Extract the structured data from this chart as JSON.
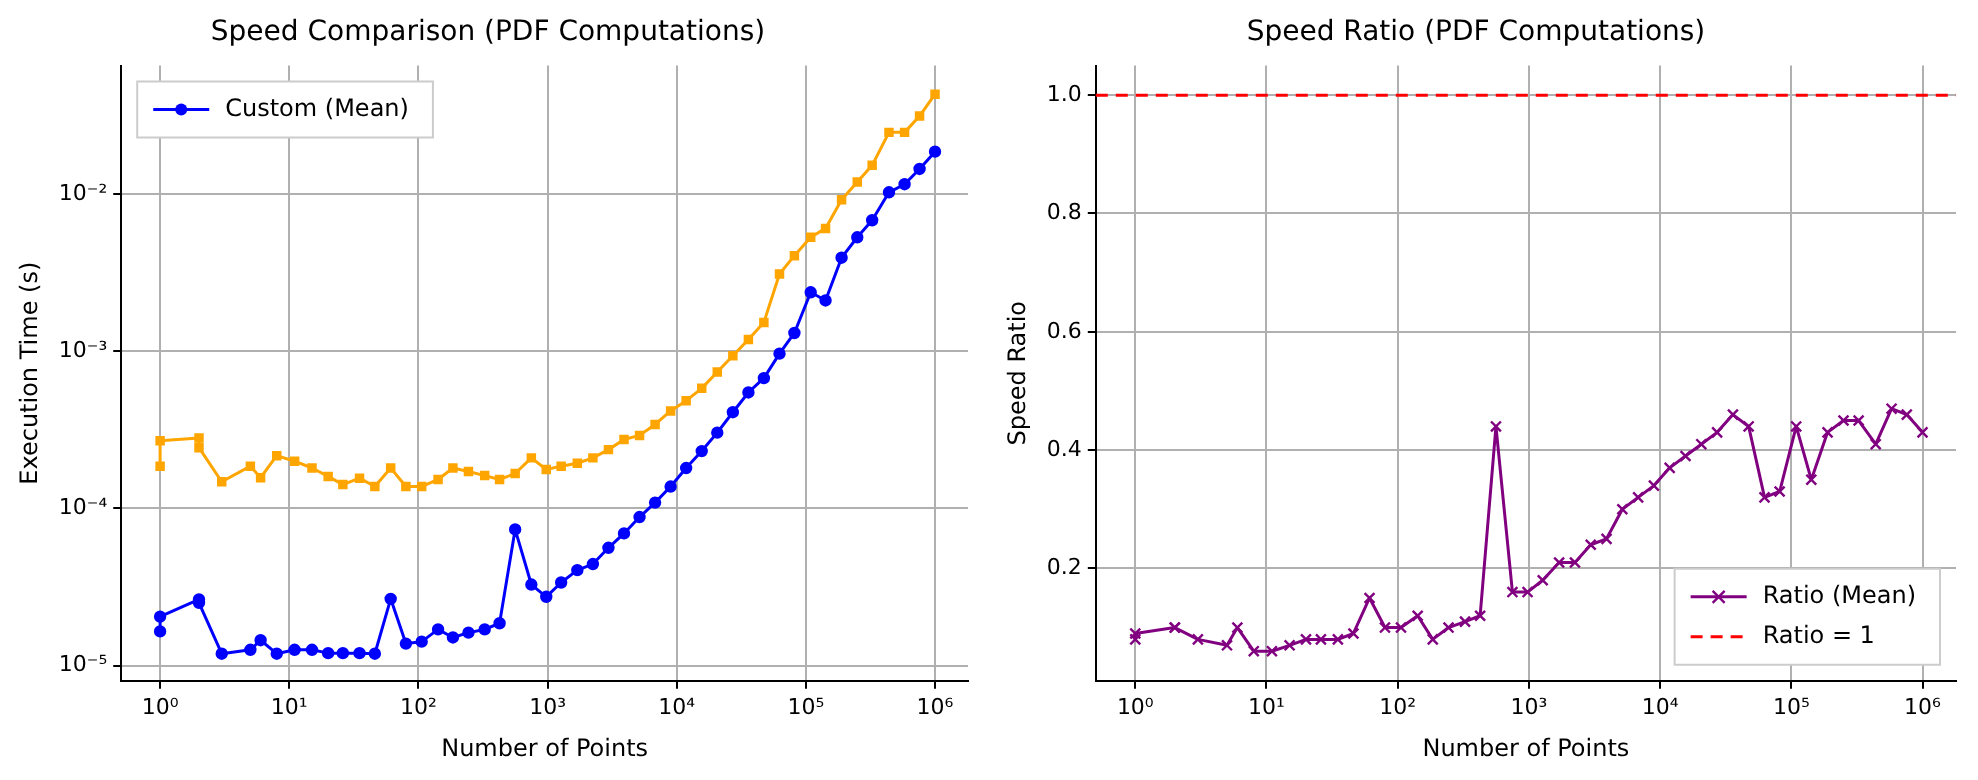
{
  "chart_data": [
    {
      "type": "line",
      "title": "Speed Comparison (PDF Computations)",
      "xlabel": "Number of Points",
      "ylabel": "Execution Time (s)",
      "log": "xy",
      "grid": true,
      "legend": "top left",
      "x": [
        1,
        1,
        2,
        2,
        3,
        5,
        6,
        8,
        11,
        15,
        20,
        26,
        35,
        46,
        61,
        80,
        106,
        142,
        185,
        244,
        326,
        425,
        561,
        749,
        977,
        1274,
        1700,
        2244,
        2960,
        3907,
        5155,
        6800,
        8970,
        11830,
        15620,
        20600,
        27200,
        35900,
        47300,
        62500,
        81500,
        109000,
        142000,
        189000,
        250000,
        326000,
        440000,
        581000,
        759000,
        1000000
      ],
      "xlim": [
        0.5,
        1800000
      ],
      "xticks": [
        {
          "value": 1,
          "label": "10⁰"
        },
        {
          "value": 10,
          "label": "10¹"
        },
        {
          "value": 100,
          "label": "10²"
        },
        {
          "value": 1000,
          "label": "10³"
        },
        {
          "value": 10000,
          "label": "10⁴"
        },
        {
          "value": 100000,
          "label": "10⁵"
        },
        {
          "value": 1000000,
          "label": "10⁶"
        }
      ],
      "ylim": [
        8e-06,
        0.066
      ],
      "yticks": [
        {
          "value": 1e-05,
          "label": "10⁻⁵"
        },
        {
          "value": 0.0001,
          "label": "10⁻⁴"
        },
        {
          "value": 0.001,
          "label": "10⁻³"
        },
        {
          "value": 0.01,
          "label": "10⁻²"
        }
      ],
      "series": [
        {
          "name": "Custom (Mean)",
          "color": "#0000ff",
          "marker": "circle",
          "values": [
            1.65e-05,
            2.05e-05,
            2.64e-05,
            2.51e-05,
            1.19e-05,
            1.26e-05,
            1.45e-05,
            1.19e-05,
            1.26e-05,
            1.26e-05,
            1.2e-05,
            1.2e-05,
            1.2e-05,
            1.19e-05,
            2.66e-05,
            1.38e-05,
            1.42e-05,
            1.7e-05,
            1.51e-05,
            1.62e-05,
            1.7e-05,
            1.86e-05,
            7.36e-05,
            3.28e-05,
            2.74e-05,
            3.38e-05,
            4.05e-05,
            4.43e-05,
            5.62e-05,
            6.94e-05,
            8.82e-05,
            0.000109,
            0.000138,
            0.000181,
            0.000232,
            0.000304,
            0.00041,
            0.000548,
            0.000676,
            0.000968,
            0.00131,
            0.00238,
            0.00211,
            0.00395,
            0.00533,
            0.00684,
            0.0103,
            0.0116,
            0.0145,
            0.0187
          ]
        },
        {
          "color": "#ffa500",
          "marker": "square",
          "values": [
            0.000186,
            0.00027,
            0.000281,
            0.000244,
            0.000148,
            0.000186,
            0.000157,
            0.000217,
            0.0002,
            0.000181,
            0.00016,
            0.000142,
            0.000156,
            0.000138,
            0.000181,
            0.000138,
            0.000138,
            0.000153,
            0.000181,
            0.000172,
            0.000162,
            0.000153,
            0.000167,
            0.00021,
            0.000177,
            0.000186,
            0.000194,
            0.00021,
            0.000237,
            0.000275,
            0.000292,
            0.000343,
            0.000418,
            0.000486,
            0.000582,
            0.000739,
            0.000939,
            0.00119,
            0.00153,
            0.00311,
            0.00407,
            0.00533,
            0.00607,
            0.00923,
            0.012,
            0.0153,
            0.0248,
            0.0248,
            0.0315,
            0.0434
          ]
        }
      ]
    },
    {
      "type": "line",
      "title": "Speed Ratio (PDF Computations)",
      "xlabel": "Number of Points",
      "ylabel": "Speed Ratio",
      "log": "x",
      "grid": true,
      "legend": "bottom right",
      "x": [
        1,
        1,
        2,
        2,
        3,
        5,
        6,
        8,
        11,
        15,
        20,
        26,
        35,
        46,
        61,
        80,
        106,
        142,
        185,
        244,
        326,
        425,
        561,
        749,
        977,
        1274,
        1700,
        2244,
        2960,
        3907,
        5155,
        6800,
        8970,
        11830,
        15620,
        20600,
        27200,
        35900,
        47300,
        62500,
        81500,
        109000,
        142000,
        189000,
        250000,
        326000,
        440000,
        581000,
        759000,
        1000000
      ],
      "xlim": [
        0.5,
        1800000
      ],
      "xticks": [
        {
          "value": 1,
          "label": "10⁰"
        },
        {
          "value": 10,
          "label": "10¹"
        },
        {
          "value": 100,
          "label": "10²"
        },
        {
          "value": 1000,
          "label": "10³"
        },
        {
          "value": 10000,
          "label": "10⁴"
        },
        {
          "value": 100000,
          "label": "10⁵"
        },
        {
          "value": 1000000,
          "label": "10⁶"
        }
      ],
      "ylim": [
        0.01,
        1.05
      ],
      "yticks": [
        {
          "value": 0.2,
          "label": "0.2"
        },
        {
          "value": 0.4,
          "label": "0.4"
        },
        {
          "value": 0.6,
          "label": "0.6"
        },
        {
          "value": 0.8,
          "label": "0.8"
        },
        {
          "value": 1,
          "label": "1.0"
        }
      ],
      "series": [
        {
          "name": "Ratio (Mean)",
          "color": "#800080",
          "marker": "cross",
          "values": [
            0.08,
            0.09,
            0.1,
            0.1,
            0.08,
            0.07,
            0.1,
            0.06,
            0.06,
            0.07,
            0.08,
            0.08,
            0.08,
            0.09,
            0.15,
            0.1,
            0.1,
            0.12,
            0.08,
            0.1,
            0.11,
            0.12,
            0.44,
            0.16,
            0.16,
            0.18,
            0.21,
            0.21,
            0.24,
            0.25,
            0.3,
            0.32,
            0.34,
            0.37,
            0.39,
            0.41,
            0.43,
            0.46,
            0.44,
            0.32,
            0.33,
            0.44,
            0.35,
            0.43,
            0.45,
            0.45,
            0.41,
            0.47,
            0.46,
            0.43
          ]
        }
      ],
      "ref_lines": [
        {
          "axis": "y",
          "value": 1,
          "label": "Ratio = 1",
          "color": "#ff0000",
          "line_style": "dashed"
        }
      ]
    }
  ]
}
